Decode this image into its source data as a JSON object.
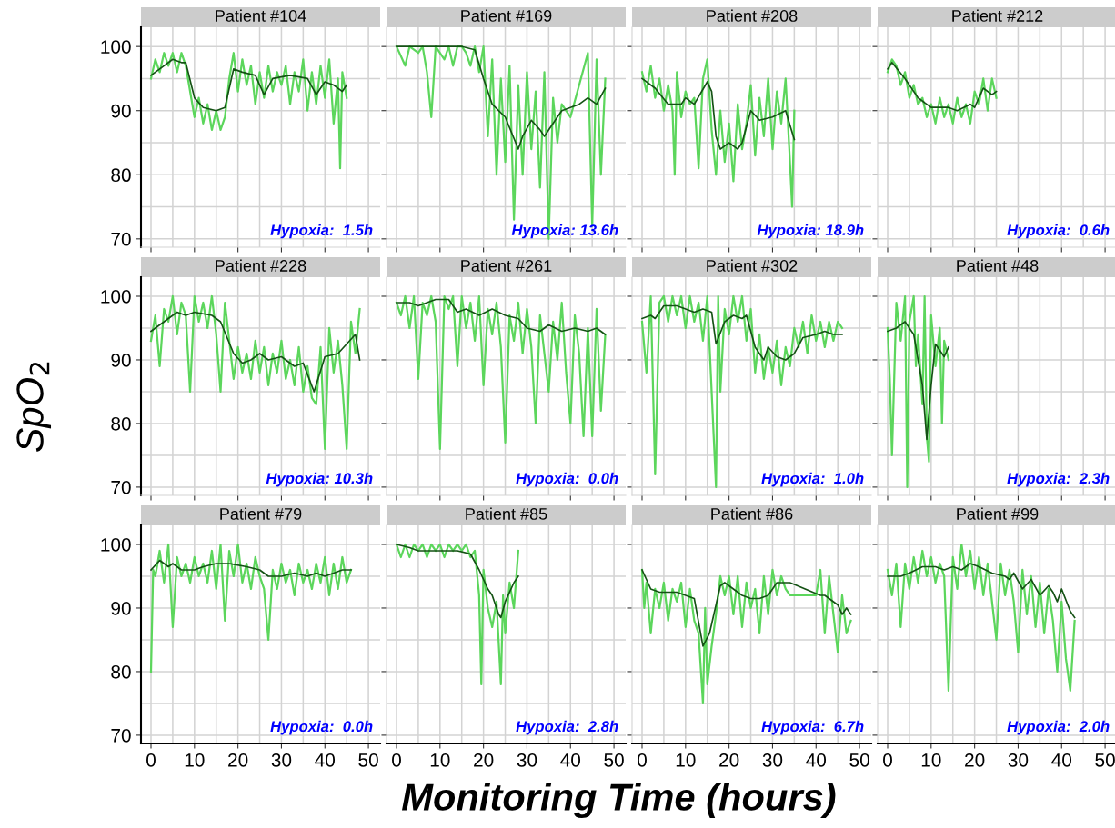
{
  "chart_data": [
    {
      "type": "line",
      "title": "Patient #104",
      "xlabel": "Monitoring Time (hours)",
      "ylabel": "SpO$_{2}$",
      "xlim": [
        -2.3,
        52.7
      ],
      "ylim": [
        68.7,
        103
      ],
      "xticks": [
        0,
        10,
        20,
        30,
        40,
        50
      ],
      "yticks": [
        70,
        80,
        90,
        100
      ],
      "grid": true,
      "tick_labels": "y",
      "annotations": [
        "Hypoxia:  1.5h"
      ],
      "series": [
        {
          "color": "#5cd65c",
          "x": [
            0,
            1,
            2,
            3,
            4,
            5,
            6,
            7,
            8,
            9,
            10,
            11,
            12,
            13,
            14,
            15,
            16,
            17,
            18,
            19,
            20,
            21,
            22,
            23,
            24,
            25,
            26,
            27,
            28,
            29,
            30,
            31,
            32,
            33,
            34,
            35,
            36,
            37,
            38,
            39,
            40,
            41,
            42,
            43,
            43.5,
            44,
            45
          ],
          "values": [
            95,
            98,
            96,
            99,
            97,
            99,
            96,
            99,
            97,
            93,
            89,
            92,
            88,
            91,
            87,
            90,
            87,
            89,
            95,
            99,
            93,
            98,
            94,
            97,
            91,
            96,
            92,
            97,
            93,
            96,
            94,
            97,
            91,
            96,
            93,
            98,
            90,
            96,
            91,
            97,
            92,
            98,
            88,
            95,
            81,
            96,
            92
          ]
        },
        {
          "color": "#145214",
          "x": [
            0,
            3,
            5,
            7,
            8,
            10,
            12,
            15,
            17,
            19,
            21,
            24,
            26,
            28,
            32,
            36,
            38,
            40,
            42,
            44,
            45
          ],
          "values": [
            95.5,
            97,
            98,
            97.5,
            97.5,
            92,
            90.5,
            90,
            90.5,
            96.5,
            96,
            95.5,
            92.5,
            95,
            95.5,
            95,
            92.5,
            94.5,
            94,
            93,
            94
          ]
        }
      ]
    },
    {
      "type": "line",
      "title": "Patient #169",
      "xlim": [
        -2.3,
        52.7
      ],
      "ylim": [
        68.7,
        103
      ],
      "xticks": [
        0,
        10,
        20,
        30,
        40,
        50
      ],
      "yticks": [
        70,
        80,
        90,
        100
      ],
      "grid": true,
      "tick_labels": false,
      "annotations": [
        "Hypoxia: 13.6h"
      ],
      "series": [
        {
          "color": "#5cd65c",
          "x": [
            0,
            2,
            3,
            5,
            6,
            7,
            8,
            9,
            11,
            12,
            13,
            14,
            15,
            16,
            17,
            18,
            19,
            20,
            21,
            22,
            23,
            24,
            25,
            26,
            27,
            28,
            29,
            30,
            31,
            32,
            33,
            34,
            35,
            36,
            37,
            38,
            40,
            44,
            45,
            46,
            47,
            48
          ],
          "values": [
            100,
            97,
            100,
            99,
            100,
            96,
            89,
            100,
            98,
            100,
            97,
            100,
            100,
            99,
            97,
            100,
            96,
            100,
            86,
            98,
            80,
            95,
            82,
            97,
            73,
            94,
            80,
            96,
            84,
            93,
            78,
            96,
            70,
            92,
            85,
            91,
            89,
            99,
            72,
            98,
            80,
            95
          ]
        },
        {
          "color": "#145214",
          "x": [
            0,
            5,
            10,
            15,
            18,
            20,
            22,
            25,
            28,
            29,
            31,
            33,
            34,
            36,
            38,
            40,
            42,
            44,
            46,
            48
          ],
          "values": [
            100,
            100,
            100,
            100,
            99.5,
            95,
            91,
            89,
            84,
            86,
            88.5,
            87,
            86,
            88,
            90,
            90.5,
            91,
            92,
            91,
            93.5
          ]
        }
      ]
    },
    {
      "type": "line",
      "title": "Patient #208",
      "xlim": [
        -2.3,
        52.7
      ],
      "ylim": [
        68.7,
        103
      ],
      "xticks": [
        0,
        10,
        20,
        30,
        40,
        50
      ],
      "yticks": [
        70,
        80,
        90,
        100
      ],
      "grid": true,
      "tick_labels": false,
      "annotations": [
        "Hypoxia: 18.9h"
      ],
      "series": [
        {
          "color": "#5cd65c",
          "x": [
            0,
            1,
            2,
            3,
            4,
            5,
            6,
            7,
            7.5,
            8,
            9,
            10,
            11,
            12,
            13,
            14,
            15,
            16,
            17,
            18,
            19,
            20,
            21,
            22,
            23,
            24,
            25,
            26,
            27,
            28,
            29,
            30,
            31,
            32,
            33,
            34,
            34.5,
            35
          ],
          "values": [
            96,
            93,
            97,
            92,
            95,
            90,
            94,
            90,
            80,
            96,
            89,
            93,
            91,
            92,
            81,
            95,
            98,
            87,
            80,
            90,
            82,
            88,
            79,
            91,
            84,
            88,
            94,
            83,
            92,
            86,
            95,
            84,
            93,
            88,
            95,
            82,
            75,
            90
          ]
        },
        {
          "color": "#145214",
          "x": [
            0,
            3,
            6,
            9,
            10,
            12,
            15,
            16,
            17,
            18,
            20,
            22,
            23,
            25,
            27,
            30,
            33,
            35
          ],
          "values": [
            95,
            93.5,
            91,
            91,
            92,
            91,
            94.5,
            93,
            86,
            84,
            85,
            84,
            85,
            90,
            88.5,
            89,
            90,
            85.5
          ]
        }
      ]
    },
    {
      "type": "line",
      "title": "Patient #212",
      "xlim": [
        -2.3,
        52.7
      ],
      "ylim": [
        68.7,
        103
      ],
      "xticks": [
        0,
        10,
        20,
        30,
        40,
        50
      ],
      "yticks": [
        70,
        80,
        90,
        100
      ],
      "grid": true,
      "tick_labels": false,
      "annotations": [
        "Hypoxia:  0.6h"
      ],
      "series": [
        {
          "color": "#5cd65c",
          "x": [
            0,
            1,
            2,
            3,
            4,
            5,
            6,
            7,
            8,
            9,
            10,
            11,
            12,
            13,
            14,
            15,
            16,
            17,
            18,
            19,
            20,
            21,
            22,
            23,
            24,
            25
          ],
          "values": [
            96,
            98,
            97,
            94,
            96,
            92,
            94,
            91,
            92,
            89,
            91,
            88,
            92,
            89,
            91,
            88,
            92,
            89,
            91,
            88,
            93,
            91,
            95,
            90,
            95,
            92
          ]
        },
        {
          "color": "#145214",
          "x": [
            0,
            1,
            4,
            7,
            10,
            14,
            16,
            19,
            20,
            22,
            24,
            25
          ],
          "values": [
            96.5,
            97.5,
            95,
            92,
            90.5,
            90.5,
            90,
            91,
            90.5,
            93.5,
            92.5,
            93
          ]
        }
      ]
    },
    {
      "type": "line",
      "title": "Patient #228",
      "xlim": [
        -2.3,
        52.7
      ],
      "ylim": [
        68.7,
        103
      ],
      "xticks": [
        0,
        10,
        20,
        30,
        40,
        50
      ],
      "yticks": [
        70,
        80,
        90,
        100
      ],
      "grid": true,
      "tick_labels": "y",
      "annotations": [
        "Hypoxia: 10.3h"
      ],
      "series": [
        {
          "color": "#5cd65c",
          "x": [
            0,
            1,
            2,
            3,
            4,
            5,
            6,
            7,
            8,
            9,
            10,
            11,
            12,
            13,
            14,
            15,
            16,
            17,
            18,
            19,
            20,
            21,
            22,
            23,
            24,
            25,
            26,
            27,
            28,
            29,
            30,
            31,
            32,
            33,
            34,
            35,
            36,
            37,
            38,
            39,
            40,
            41,
            42,
            43,
            44,
            45,
            46,
            47,
            48
          ],
          "values": [
            93,
            97,
            89,
            98,
            96,
            100,
            94,
            99,
            97,
            85,
            100,
            96,
            99,
            95,
            100,
            94,
            85,
            99,
            93,
            87,
            92,
            88,
            91,
            87,
            93,
            88,
            92,
            86,
            91,
            88,
            93,
            87,
            90,
            86,
            92,
            85,
            89,
            84,
            83,
            92,
            76,
            95,
            88,
            93,
            86,
            76,
            96,
            91,
            98
          ]
        },
        {
          "color": "#145214",
          "x": [
            0,
            4,
            6,
            8,
            10,
            14,
            16,
            19,
            21,
            23,
            25,
            27,
            30,
            33,
            35,
            37.5,
            40,
            43,
            47,
            48
          ],
          "values": [
            94.5,
            96.5,
            97.5,
            97,
            97.5,
            97,
            96,
            91,
            89.5,
            90,
            91,
            90,
            90.5,
            89,
            89.5,
            85,
            90.5,
            91,
            94,
            90
          ]
        }
      ]
    },
    {
      "type": "line",
      "title": "Patient #261",
      "xlim": [
        -2.3,
        52.7
      ],
      "ylim": [
        68.7,
        103
      ],
      "xticks": [
        0,
        10,
        20,
        30,
        40,
        50
      ],
      "yticks": [
        70,
        80,
        90,
        100
      ],
      "grid": true,
      "tick_labels": false,
      "annotations": [
        "Hypoxia:  0.0h"
      ],
      "series": [
        {
          "color": "#5cd65c",
          "x": [
            0,
            1,
            2,
            3,
            4,
            5,
            6,
            7,
            8,
            9,
            10,
            11,
            12,
            13,
            14,
            15,
            16,
            17,
            18,
            19,
            20,
            21,
            22,
            23,
            24,
            25,
            26,
            27,
            28,
            29,
            30,
            31,
            32,
            33,
            34,
            35,
            36,
            37,
            38,
            39,
            40,
            41,
            42,
            43,
            44,
            45,
            46,
            47,
            48
          ],
          "values": [
            99,
            97,
            100,
            95,
            100,
            87,
            99,
            97,
            100,
            96,
            76,
            100,
            98,
            100,
            89,
            100,
            95,
            99,
            93,
            100,
            86,
            98,
            94,
            99,
            92,
            77,
            97,
            93,
            99,
            91,
            98,
            92,
            80,
            97,
            91,
            85,
            96,
            90,
            99,
            88,
            80,
            97,
            91,
            78,
            95,
            78,
            98,
            82,
            94
          ]
        },
        {
          "color": "#145214",
          "x": [
            0,
            3,
            5,
            9,
            12,
            14,
            16,
            19,
            22,
            25,
            28,
            30,
            33,
            35,
            38,
            41,
            44,
            46,
            48
          ],
          "values": [
            99,
            99,
            98.5,
            99.5,
            99.5,
            97.5,
            98,
            97,
            98,
            97,
            96.5,
            95,
            94.5,
            95.5,
            94.5,
            95,
            94.5,
            95,
            94
          ]
        }
      ]
    },
    {
      "type": "line",
      "title": "Patient #302",
      "xlim": [
        -2.3,
        52.7
      ],
      "ylim": [
        68.7,
        103
      ],
      "xticks": [
        0,
        10,
        20,
        30,
        40,
        50
      ],
      "yticks": [
        70,
        80,
        90,
        100
      ],
      "grid": true,
      "tick_labels": false,
      "annotations": [
        "Hypoxia:  1.0h"
      ],
      "series": [
        {
          "color": "#5cd65c",
          "x": [
            0,
            1,
            2,
            3,
            4,
            5,
            6,
            7,
            8,
            9,
            10,
            11,
            12,
            13,
            14,
            15,
            16,
            17,
            17.5,
            18,
            19,
            20,
            21,
            22,
            23,
            24,
            25,
            26,
            27,
            28,
            29,
            30,
            31,
            32,
            33,
            34,
            35,
            36,
            37,
            38,
            39,
            40,
            41,
            42,
            43,
            44,
            45,
            46
          ],
          "values": [
            96,
            88,
            100,
            72,
            99,
            100,
            96,
            100,
            97,
            100,
            95,
            100,
            96,
            99,
            93,
            100,
            85,
            70,
            100,
            85,
            98,
            94,
            100,
            96,
            100,
            93,
            98,
            88,
            94,
            87,
            92,
            88,
            93,
            86,
            92,
            89,
            95,
            92,
            96,
            91,
            97,
            93,
            96,
            92,
            96,
            93,
            96,
            95
          ]
        },
        {
          "color": "#145214",
          "x": [
            0,
            2,
            3,
            5,
            8,
            10,
            12,
            14,
            16,
            17,
            19,
            21,
            23,
            24,
            26,
            28,
            29,
            31,
            33,
            35,
            37,
            40,
            42,
            44,
            46
          ],
          "values": [
            96.5,
            97,
            96.5,
            98.5,
            98.5,
            98,
            97.5,
            98,
            97.5,
            92.5,
            96,
            97,
            96.5,
            97,
            92,
            90,
            92,
            90.5,
            90,
            91,
            93.5,
            94,
            94.5,
            94,
            94
          ]
        }
      ]
    },
    {
      "type": "line",
      "title": "Patient #48",
      "xlim": [
        -2.3,
        52.7
      ],
      "ylim": [
        68.7,
        103
      ],
      "xticks": [
        0,
        10,
        20,
        30,
        40,
        50
      ],
      "yticks": [
        70,
        80,
        90,
        100
      ],
      "grid": true,
      "tick_labels": false,
      "annotations": [
        "Hypoxia:  2.3h"
      ],
      "series": [
        {
          "color": "#5cd65c",
          "x": [
            0,
            0.5,
            1,
            2,
            3,
            4,
            4.5,
            5,
            6,
            6.5,
            7,
            8,
            8.5,
            9,
            9.5,
            10,
            11,
            12,
            12.5,
            13,
            14
          ],
          "values": [
            95,
            87,
            75,
            99,
            93,
            100,
            70,
            96,
            100,
            89,
            94,
            83,
            100,
            78,
            74,
            97,
            89,
            95,
            80,
            93,
            90
          ]
        },
        {
          "color": "#145214",
          "x": [
            0,
            2,
            4,
            6,
            7,
            8,
            9,
            10,
            11,
            13,
            14
          ],
          "values": [
            94.5,
            95,
            96,
            94,
            90,
            86,
            77.5,
            86,
            92.5,
            90.5,
            92
          ]
        }
      ]
    },
    {
      "type": "line",
      "title": "Patient #79",
      "xlim": [
        -2.3,
        52.7
      ],
      "ylim": [
        68.7,
        103
      ],
      "xticks": [
        0,
        10,
        20,
        30,
        40,
        50
      ],
      "yticks": [
        70,
        80,
        90,
        100
      ],
      "grid": true,
      "annotations": [
        "Hypoxia:  0.0h"
      ],
      "series": [
        {
          "color": "#5cd65c",
          "x": [
            0,
            0.5,
            1,
            2,
            3,
            4,
            5,
            6,
            7,
            8,
            9,
            10,
            11,
            12,
            13,
            14,
            15,
            16,
            17,
            18,
            19,
            20,
            21,
            22,
            23,
            24,
            25,
            26,
            27,
            28,
            29,
            30,
            31,
            32,
            33,
            34,
            35,
            36,
            37,
            38,
            39,
            40,
            41,
            42,
            43,
            44,
            45,
            46
          ],
          "values": [
            80,
            96,
            95,
            99,
            94,
            100,
            87,
            98,
            95,
            97,
            94,
            98,
            95,
            97,
            94,
            99,
            93,
            100,
            88,
            99,
            95,
            100,
            94,
            97,
            93,
            98,
            95,
            93,
            85,
            96,
            93,
            97,
            94,
            96,
            92,
            97,
            94,
            96,
            93,
            97,
            94,
            98,
            92,
            97,
            93,
            98,
            94,
            96
          ]
        },
        {
          "color": "#145214",
          "x": [
            0,
            2,
            4,
            5,
            7,
            10,
            12,
            15,
            18,
            22,
            25,
            27,
            30,
            33,
            36,
            38,
            40,
            42,
            44,
            46
          ],
          "values": [
            96,
            97.5,
            96.5,
            97,
            96,
            96,
            96.5,
            97,
            97,
            96.5,
            96,
            95,
            95,
            95.5,
            95,
            95.5,
            95,
            95.5,
            96,
            96
          ]
        }
      ]
    },
    {
      "type": "line",
      "title": "Patient #85",
      "xlim": [
        -2.3,
        52.7
      ],
      "ylim": [
        68.7,
        103
      ],
      "xticks": [
        0,
        10,
        20,
        30,
        40,
        50
      ],
      "yticks": [
        70,
        80,
        90,
        100
      ],
      "grid": true,
      "tick_labels": "x",
      "annotations": [
        "Hypoxia:  2.8h"
      ],
      "series": [
        {
          "color": "#5cd65c",
          "x": [
            0,
            1,
            2,
            3,
            4,
            5,
            6,
            7,
            8,
            9,
            10,
            11,
            12,
            13,
            14,
            15,
            16,
            17,
            18,
            19,
            19.5,
            20,
            21,
            22,
            23,
            24,
            24.5,
            25,
            26,
            27,
            28
          ],
          "values": [
            100,
            98,
            100,
            98,
            100,
            99,
            100,
            98,
            100,
            99,
            100,
            98,
            100,
            99,
            100,
            99,
            100,
            98,
            99,
            92,
            78,
            96,
            90,
            87,
            91,
            78,
            92,
            86,
            94,
            90,
            99
          ]
        },
        {
          "color": "#145214",
          "x": [
            0,
            3,
            5,
            10,
            14,
            17,
            19,
            21,
            22,
            23.5,
            24,
            25,
            27,
            28
          ],
          "values": [
            100,
            99.5,
            99,
            99,
            99,
            98.5,
            96,
            93,
            92,
            89,
            88.5,
            91,
            94,
            95
          ]
        }
      ]
    },
    {
      "type": "line",
      "title": "Patient #86",
      "xlim": [
        -2.3,
        52.7
      ],
      "ylim": [
        68.7,
        103
      ],
      "xticks": [
        0,
        10,
        20,
        30,
        40,
        50
      ],
      "yticks": [
        70,
        80,
        90,
        100
      ],
      "grid": true,
      "tick_labels": "x",
      "annotations": [
        "Hypoxia:  6.7h"
      ],
      "series": [
        {
          "color": "#5cd65c",
          "x": [
            0,
            0.5,
            1,
            2,
            3,
            4,
            5,
            6,
            7,
            8,
            9,
            10,
            11,
            12,
            13,
            14,
            14.5,
            15,
            16,
            17,
            18,
            19,
            20,
            21,
            22,
            23,
            24,
            25,
            26,
            27,
            28,
            29,
            30,
            31,
            32,
            33,
            34,
            40,
            41,
            42,
            43,
            44,
            45,
            46,
            47,
            48
          ],
          "values": [
            96,
            90,
            94,
            86,
            93,
            90,
            94,
            88,
            93,
            91,
            94,
            87,
            93,
            88,
            86,
            75,
            90,
            78,
            84,
            89,
            95,
            92,
            95,
            89,
            95,
            87,
            94,
            90,
            93,
            86,
            95,
            89,
            96,
            92,
            95,
            93,
            92,
            92,
            96,
            86,
            95,
            89,
            83,
            92,
            86,
            88
          ]
        },
        {
          "color": "#145214",
          "x": [
            0,
            2,
            4,
            8,
            10,
            12,
            14,
            15.5,
            18,
            19,
            21,
            23,
            25,
            27,
            29,
            31,
            34,
            41,
            42,
            45,
            46,
            47,
            48
          ],
          "values": [
            96,
            93,
            92.5,
            92.5,
            92,
            91.5,
            84,
            86,
            93.5,
            94,
            93,
            92,
            91.5,
            91.5,
            92,
            94,
            94,
            92,
            92,
            90.5,
            89,
            90,
            89
          ]
        }
      ]
    },
    {
      "type": "line",
      "title": "Patient #99",
      "xlim": [
        -2.3,
        52.7
      ],
      "ylim": [
        68.7,
        103
      ],
      "xticks": [
        0,
        10,
        20,
        30,
        40,
        50
      ],
      "yticks": [
        70,
        80,
        90,
        100
      ],
      "grid": true,
      "tick_labels": "x",
      "annotations": [
        "Hypoxia:  2.0h"
      ],
      "series": [
        {
          "color": "#5cd65c",
          "x": [
            0,
            1,
            2,
            3,
            4,
            5,
            6,
            7,
            8,
            9,
            10,
            11,
            12,
            13,
            14,
            15,
            16,
            17,
            18,
            19,
            20,
            21,
            22,
            23,
            24,
            25,
            26,
            27,
            28,
            29,
            30,
            31,
            32,
            33,
            34,
            35,
            36,
            37,
            38,
            39,
            40,
            41,
            42,
            43
          ],
          "values": [
            96,
            92,
            97,
            87,
            97,
            93,
            98,
            94,
            99,
            95,
            98,
            94,
            97,
            95,
            77,
            98,
            93,
            100,
            95,
            99,
            93,
            98,
            92,
            97,
            91,
            85,
            97,
            92,
            96,
            91,
            83,
            96,
            89,
            95,
            87,
            94,
            86,
            93,
            88,
            80,
            91,
            82,
            77,
            88
          ]
        },
        {
          "color": "#145214",
          "x": [
            0,
            3,
            5,
            8,
            11,
            13,
            15,
            17,
            19,
            21,
            24,
            27,
            28,
            29,
            31,
            33,
            35,
            37,
            38,
            39,
            40,
            42,
            43
          ],
          "values": [
            95,
            95,
            95.5,
            96.5,
            96.5,
            96,
            96.5,
            96,
            97,
            96.5,
            95.5,
            95,
            94.5,
            95.5,
            93,
            94.5,
            92,
            93.5,
            92.5,
            91,
            93,
            89.5,
            88.5
          ]
        }
      ]
    }
  ]
}
